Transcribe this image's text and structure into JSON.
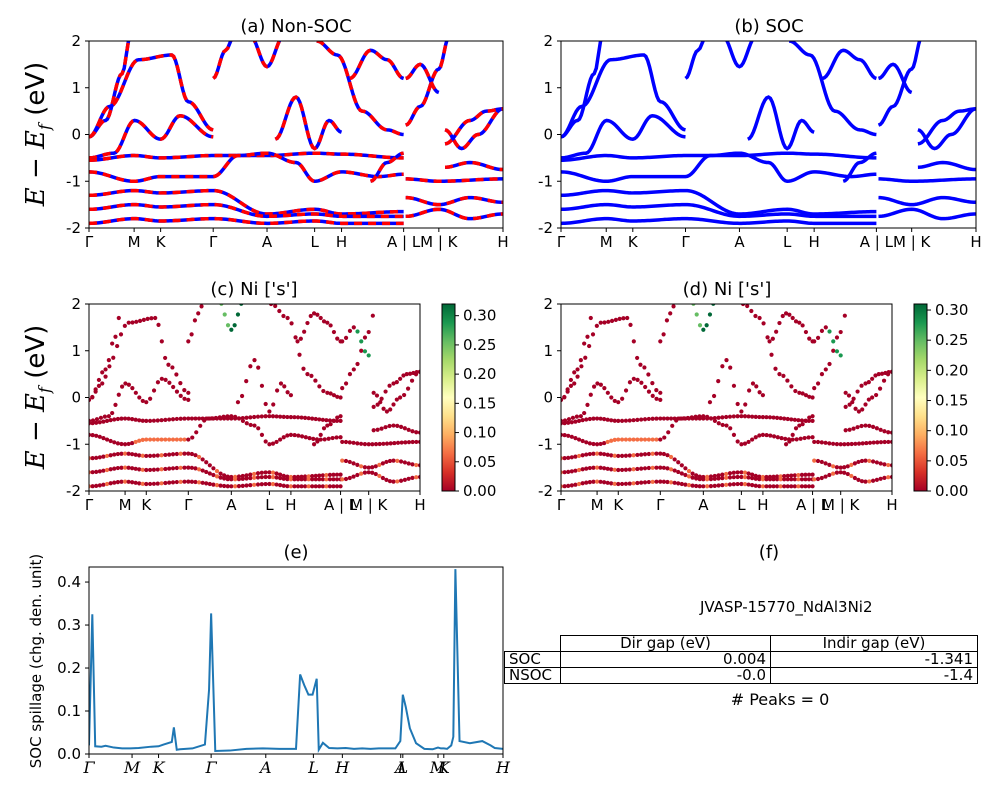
{
  "panels": {
    "a": {
      "title": "(a) Non-SOC"
    },
    "b": {
      "title": "(b) SOC"
    },
    "c": {
      "title": "(c)  Ni ['s']"
    },
    "d": {
      "title": "(d) Ni ['s']"
    },
    "e": {
      "title": "(e)"
    },
    "f": {
      "title": "(f)"
    }
  },
  "axis": {
    "energy_label": "E − E_f (eV)",
    "spillage_label": "SOC spillage (chg. den. unit)"
  },
  "summary": {
    "material": "JVASP-15770_NdAl3Ni2",
    "columns": [
      "Dir gap (eV)",
      "Indir gap (eV)"
    ],
    "rows": [
      {
        "label": "SOC",
        "dir": "0.004",
        "indir": "-1.341"
      },
      {
        "label": "NSOC",
        "dir": "-0.0",
        "indir": "-1.4"
      }
    ],
    "peaks": "# Peaks = 0"
  },
  "chart_data": [
    {
      "type": "line",
      "panel": "a",
      "title": "(a) Non-SOC",
      "ylabel": "E − E_f (eV)",
      "ylim": [
        -2,
        2
      ],
      "yticks": [
        -2,
        -1,
        0,
        1,
        2
      ],
      "kpath_labels": [
        "Γ",
        "M",
        "K",
        "Γ",
        "A",
        "L",
        "H",
        "A | L",
        "M | K",
        "H"
      ],
      "kpath_positions": [
        0,
        0.109,
        0.173,
        0.3,
        0.43,
        0.545,
        0.61,
        0.76,
        0.845,
        1.0
      ],
      "colors": {
        "up": "#ff0000",
        "down": "#0000ff"
      },
      "grid": false
    },
    {
      "type": "line",
      "panel": "b",
      "title": "(b) SOC",
      "ylim": [
        -2,
        2
      ],
      "yticks": [
        -2,
        -1,
        0,
        1,
        2
      ],
      "kpath_labels": [
        "Γ",
        "M",
        "K",
        "Γ",
        "A",
        "L",
        "H",
        "A | L",
        "M | K",
        "H"
      ],
      "kpath_positions": [
        0,
        0.109,
        0.173,
        0.3,
        0.43,
        0.545,
        0.61,
        0.76,
        0.845,
        1.0
      ],
      "colors": {
        "line": "#0000ff"
      },
      "grid": false
    },
    {
      "type": "scatter",
      "panel": "c",
      "title": "(c)  Ni ['s']",
      "ylabel": "E − E_f (eV)",
      "ylim": [
        -2,
        2
      ],
      "yticks": [
        -2,
        -1,
        0,
        1,
        2
      ],
      "kpath_labels": [
        "Γ",
        "M",
        "K",
        "Γ",
        "A",
        "L",
        "H",
        "A | L",
        "M | K",
        "H"
      ],
      "kpath_positions": [
        0,
        0.109,
        0.173,
        0.3,
        0.43,
        0.545,
        0.61,
        0.76,
        0.845,
        1.0
      ],
      "colorbar": {
        "colormap": "RdYlGn",
        "range": [
          0.0,
          0.32
        ],
        "ticks": [
          "0.00",
          "0.05",
          "0.10",
          "0.15",
          "0.20",
          "0.25",
          "0.30"
        ]
      }
    },
    {
      "type": "scatter",
      "panel": "d",
      "title": "(d) Ni ['s']",
      "ylim": [
        -2,
        2
      ],
      "yticks": [
        -2,
        -1,
        0,
        1,
        2
      ],
      "kpath_labels": [
        "Γ",
        "M",
        "K",
        "Γ",
        "A",
        "L",
        "H",
        "A | L",
        "M | K",
        "H"
      ],
      "kpath_positions": [
        0,
        0.109,
        0.173,
        0.3,
        0.43,
        0.545,
        0.61,
        0.76,
        0.845,
        1.0
      ],
      "colorbar": {
        "colormap": "RdYlGn",
        "range": [
          0.0,
          0.31
        ],
        "ticks": [
          "0.00",
          "0.05",
          "0.10",
          "0.15",
          "0.20",
          "0.25",
          "0.30"
        ]
      }
    },
    {
      "type": "line",
      "panel": "e",
      "title": "(e)",
      "ylabel": "SOC spillage (chg. den. unit)",
      "ylim": [
        0,
        0.435
      ],
      "yticks": [
        "0.0",
        "0.1",
        "0.2",
        "0.3",
        "0.4"
      ],
      "kpath_labels": [
        "Γ",
        "M",
        "K",
        "Γ",
        "A",
        "L",
        "H",
        "A",
        "L",
        "M",
        "K",
        "H"
      ],
      "kpath_positions": [
        0,
        0.104,
        0.168,
        0.295,
        0.427,
        0.542,
        0.612,
        0.753,
        0.758,
        0.843,
        0.857,
        1.0
      ],
      "color": "#1f77b4",
      "x": [
        0,
        0.008,
        0.015,
        0.03,
        0.04,
        0.06,
        0.08,
        0.1,
        0.12,
        0.15,
        0.168,
        0.18,
        0.2,
        0.205,
        0.212,
        0.22,
        0.25,
        0.28,
        0.29,
        0.295,
        0.305,
        0.34,
        0.38,
        0.42,
        0.46,
        0.5,
        0.51,
        0.52,
        0.53,
        0.54,
        0.55,
        0.555,
        0.565,
        0.58,
        0.6,
        0.62,
        0.64,
        0.66,
        0.68,
        0.7,
        0.72,
        0.74,
        0.752,
        0.758,
        0.765,
        0.775,
        0.79,
        0.81,
        0.83,
        0.843,
        0.85,
        0.857,
        0.865,
        0.875,
        0.88,
        0.885,
        0.895,
        0.92,
        0.95,
        0.97,
        0.98,
        1.0
      ],
      "y": [
        0.02,
        0.325,
        0.018,
        0.017,
        0.019,
        0.015,
        0.013,
        0.013,
        0.014,
        0.017,
        0.018,
        0.022,
        0.028,
        0.062,
        0.01,
        0.011,
        0.013,
        0.022,
        0.15,
        0.327,
        0.007,
        0.008,
        0.012,
        0.013,
        0.012,
        0.012,
        0.185,
        0.16,
        0.138,
        0.138,
        0.175,
        0.01,
        0.026,
        0.014,
        0.013,
        0.014,
        0.012,
        0.013,
        0.012,
        0.013,
        0.013,
        0.013,
        0.03,
        0.138,
        0.11,
        0.06,
        0.025,
        0.012,
        0.011,
        0.015,
        0.013,
        0.013,
        0.012,
        0.02,
        0.04,
        0.43,
        0.03,
        0.025,
        0.03,
        0.02,
        0.014,
        0.012
      ],
      "grid": false
    }
  ]
}
